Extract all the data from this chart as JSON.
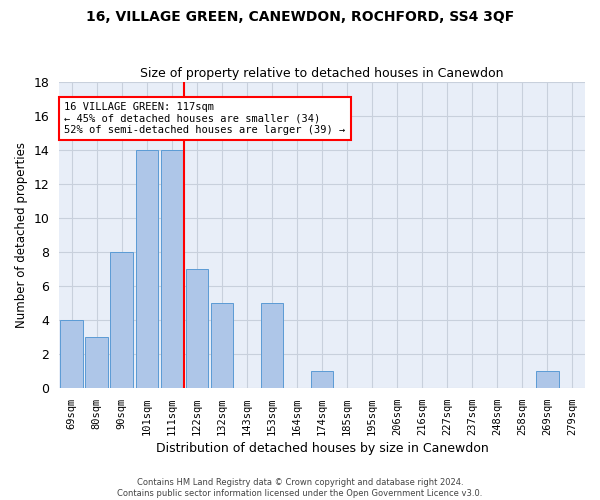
{
  "title": "16, VILLAGE GREEN, CANEWDON, ROCHFORD, SS4 3QF",
  "subtitle": "Size of property relative to detached houses in Canewdon",
  "xlabel": "Distribution of detached houses by size in Canewdon",
  "ylabel": "Number of detached properties",
  "categories": [
    "69sqm",
    "80sqm",
    "90sqm",
    "101sqm",
    "111sqm",
    "122sqm",
    "132sqm",
    "143sqm",
    "153sqm",
    "164sqm",
    "174sqm",
    "185sqm",
    "195sqm",
    "206sqm",
    "216sqm",
    "227sqm",
    "237sqm",
    "248sqm",
    "258sqm",
    "269sqm",
    "279sqm"
  ],
  "values": [
    4,
    3,
    8,
    14,
    14,
    7,
    5,
    0,
    5,
    0,
    1,
    0,
    0,
    0,
    0,
    0,
    0,
    0,
    0,
    1,
    0
  ],
  "bar_color": "#aec6e8",
  "bar_edge_color": "#5b9bd5",
  "ylim": [
    0,
    18
  ],
  "yticks": [
    0,
    2,
    4,
    6,
    8,
    10,
    12,
    14,
    16,
    18
  ],
  "marker_label": "16 VILLAGE GREEN: 117sqm",
  "annotation_line1": "← 45% of detached houses are smaller (34)",
  "annotation_line2": "52% of semi-detached houses are larger (39) →",
  "footer_line1": "Contains HM Land Registry data © Crown copyright and database right 2024.",
  "footer_line2": "Contains public sector information licensed under the Open Government Licence v3.0.",
  "bg_color": "#e8eef8",
  "grid_color": "#c8d0dc",
  "title_fontsize": 10,
  "subtitle_fontsize": 9
}
